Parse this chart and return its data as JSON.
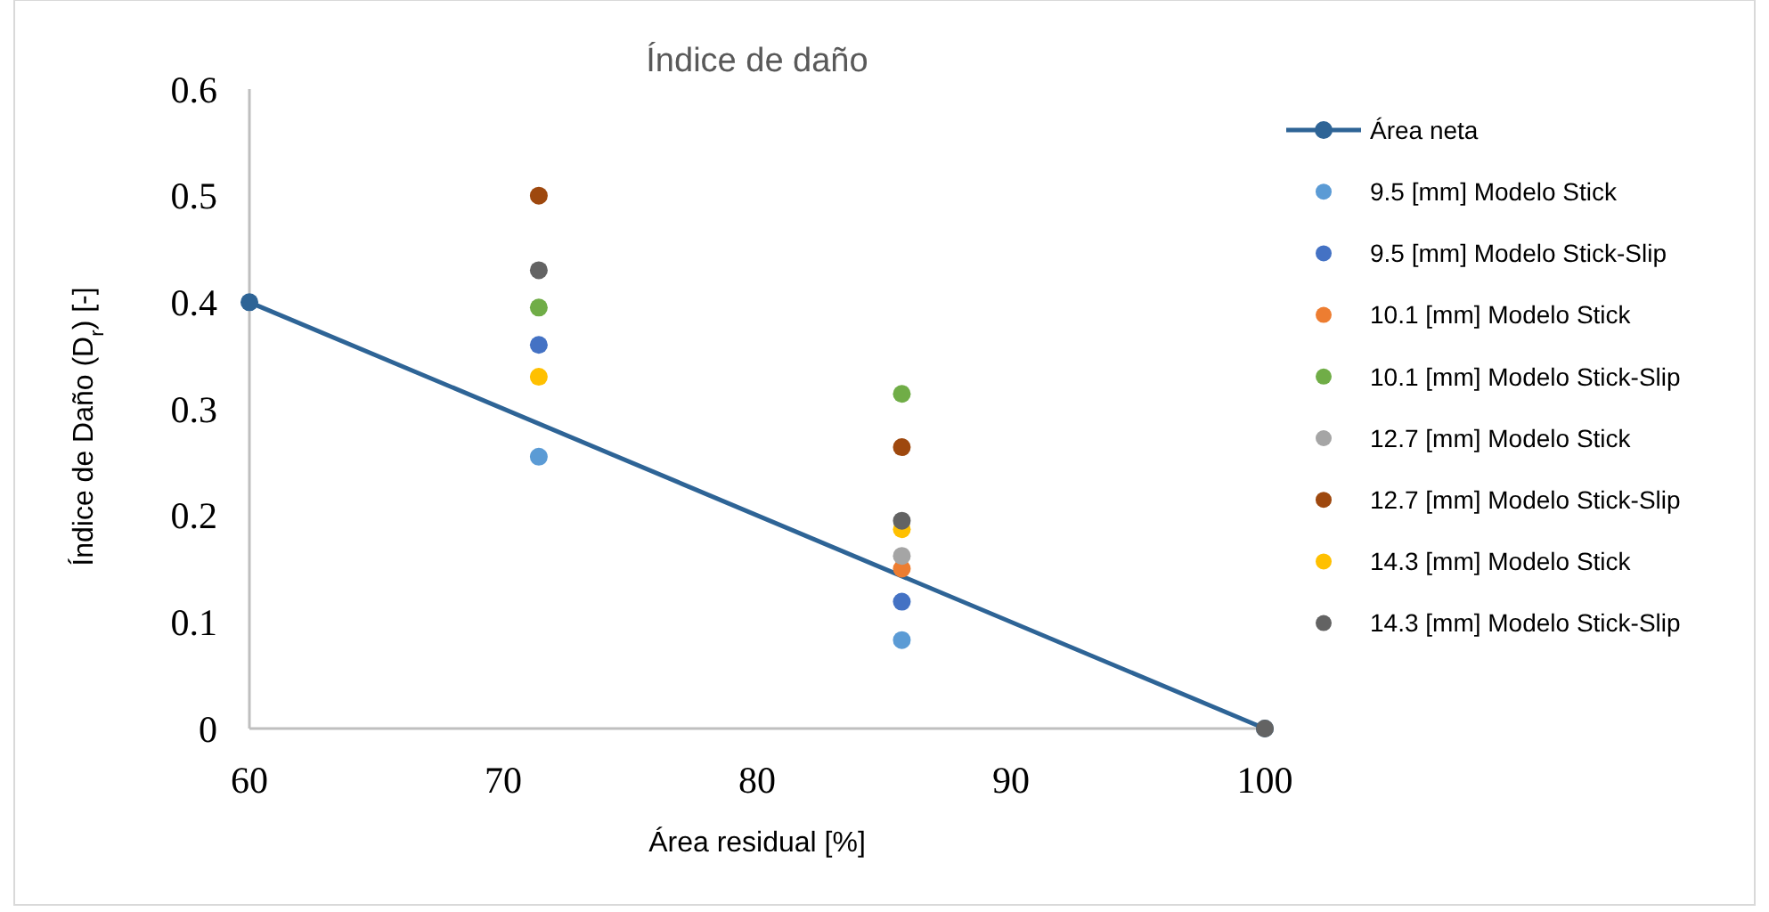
{
  "chart_data": {
    "type": "scatter",
    "title": "Índice de daño",
    "xlabel": "Área residual [%]",
    "ylabel": "Índice de Daño (D$_{r}$) [-]",
    "xlim": [
      60,
      100
    ],
    "xticks": [
      60,
      70,
      80,
      90,
      100
    ],
    "ylim": [
      0,
      0.6
    ],
    "yticks": [
      0,
      0.1,
      0.2,
      0.3,
      0.4,
      0.5,
      0.6
    ],
    "grid": false,
    "legend": "right",
    "marker": "circle",
    "series": [
      {
        "name": "Área neta",
        "type": "line",
        "color": "#2e6496",
        "x": [
          60,
          100
        ],
        "values": [
          0.4,
          0
        ]
      },
      {
        "name": "9.5 [mm] Modelo Stick",
        "color": "#5b9bd5",
        "x": [
          71.4,
          85.7
        ],
        "values": [
          0.255,
          0.083
        ]
      },
      {
        "name": "9.5 [mm] Modelo Stick-Slip",
        "color": "#4472c4",
        "x": [
          71.4,
          85.7
        ],
        "values": [
          0.36,
          0.119
        ]
      },
      {
        "name": "10.1 [mm] Modelo Stick",
        "color": "#ed7d31",
        "x": [
          85.7
        ],
        "values": [
          0.15
        ]
      },
      {
        "name": "10.1 [mm] Modelo Stick-Slip",
        "color": "#70ad47",
        "x": [
          71.4,
          85.7
        ],
        "values": [
          0.395,
          0.314
        ]
      },
      {
        "name": "12.7 [mm] Modelo Stick",
        "color": "#a5a5a5",
        "x": [
          85.7
        ],
        "values": [
          0.162
        ]
      },
      {
        "name": "12.7 [mm] Modelo Stick-Slip",
        "color": "#9e480e",
        "x": [
          71.4,
          85.7
        ],
        "values": [
          0.5,
          0.264
        ]
      },
      {
        "name": "14.3 [mm] Modelo Stick",
        "color": "#ffc000",
        "x": [
          71.4,
          85.7
        ],
        "values": [
          0.33,
          0.187
        ]
      },
      {
        "name": "14.3 [mm] Modelo Stick-Slip",
        "color": "#636363",
        "x": [
          71.4,
          85.7,
          100
        ],
        "values": [
          0.43,
          0.195,
          0
        ]
      }
    ]
  }
}
